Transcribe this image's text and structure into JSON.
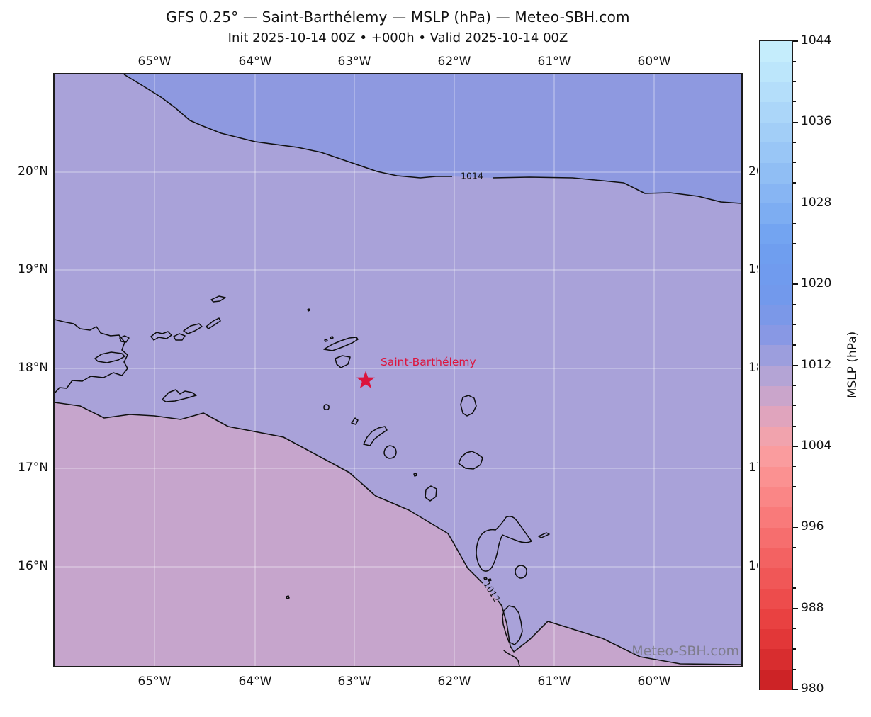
{
  "title": "GFS 0.25° — Saint-Barthélemy — MSLP (hPa) — Meteo-SBH.com",
  "subtitle": "Init 2025-10-14 00Z • +000h • Valid 2025-10-14 00Z",
  "axes": {
    "lon_labels": [
      "65°W",
      "64°W",
      "63°W",
      "62°W",
      "61°W",
      "60°W"
    ],
    "lat_labels": [
      "20°N",
      "19°N",
      "18°N",
      "17°N",
      "16°N"
    ]
  },
  "contours": {
    "isobar_1014": "1014",
    "isobar_1012": "1012"
  },
  "marker": {
    "label": "Saint-Barthélemy",
    "color": "#dc143c"
  },
  "watermark": "Meteo-SBH.com",
  "map_colors": {
    "low_band": "#c6a5cc",
    "mid_band": "#a9a2d9",
    "high_band": "#8e99e0",
    "coastline": "#0d0d0d",
    "contour": "#111111",
    "grid": "rgba(255,255,255,0.5)"
  },
  "colorbar": {
    "label": "MSLP (hPa)",
    "min": 980,
    "max": 1044,
    "minor_step": 2,
    "major_step": 8,
    "tick_labels": [
      "980",
      "988",
      "996",
      "1004",
      "1012",
      "1020",
      "1028",
      "1036",
      "1044"
    ],
    "stops": [
      [
        980,
        "#c81e21"
      ],
      [
        986,
        "#e73c3c"
      ],
      [
        992,
        "#f25c5c"
      ],
      [
        998,
        "#fa8080"
      ],
      [
        1002,
        "#fb9696"
      ],
      [
        1004,
        "#f8a2a6"
      ],
      [
        1006,
        "#eaa3b4"
      ],
      [
        1008,
        "#d5a4c5"
      ],
      [
        1010,
        "#bea5d1"
      ],
      [
        1012,
        "#a9a2d9"
      ],
      [
        1014,
        "#8f99e1"
      ],
      [
        1016,
        "#8097e6"
      ],
      [
        1019,
        "#7299ec"
      ],
      [
        1024,
        "#6e9ff0"
      ],
      [
        1028,
        "#82b1f2"
      ],
      [
        1032,
        "#95c2f5"
      ],
      [
        1036,
        "#a6d2f8"
      ],
      [
        1040,
        "#b8e2fa"
      ],
      [
        1044,
        "#c9f0fd"
      ]
    ]
  },
  "chart_data": {
    "type": "contour-map",
    "variable": "MSLP",
    "units": "hPa",
    "model": "GFS 0.25°",
    "init_time": "2025-10-14 00Z",
    "forecast_hour": "+000h",
    "valid_time": "2025-10-14 00Z",
    "lon_ticks": [
      "65°W",
      "64°W",
      "63°W",
      "62°W",
      "61°W",
      "60°W"
    ],
    "lat_ticks": [
      "20°N",
      "19°N",
      "18°N",
      "17°N",
      "16°N"
    ],
    "colorbar_range": [
      980,
      1044
    ],
    "colorbar_tick_values": [
      980,
      988,
      996,
      1004,
      1012,
      1020,
      1028,
      1036,
      1044
    ],
    "labeled_isobars_hpa": [
      1014,
      1012
    ],
    "fill_bands_visible": [
      {
        "pressure_band": "below 1012",
        "color": "#c6a5cc",
        "region": "southwest and far southeast corner"
      },
      {
        "pressure_band": "1012–1014",
        "color": "#a9a2d9",
        "region": "most of the domain"
      },
      {
        "pressure_band": "above 1014",
        "color": "#8e99e0",
        "region": "north of the 1014 isobar"
      }
    ],
    "marker": {
      "name": "Saint-Barthélemy",
      "symbol": "star"
    }
  }
}
